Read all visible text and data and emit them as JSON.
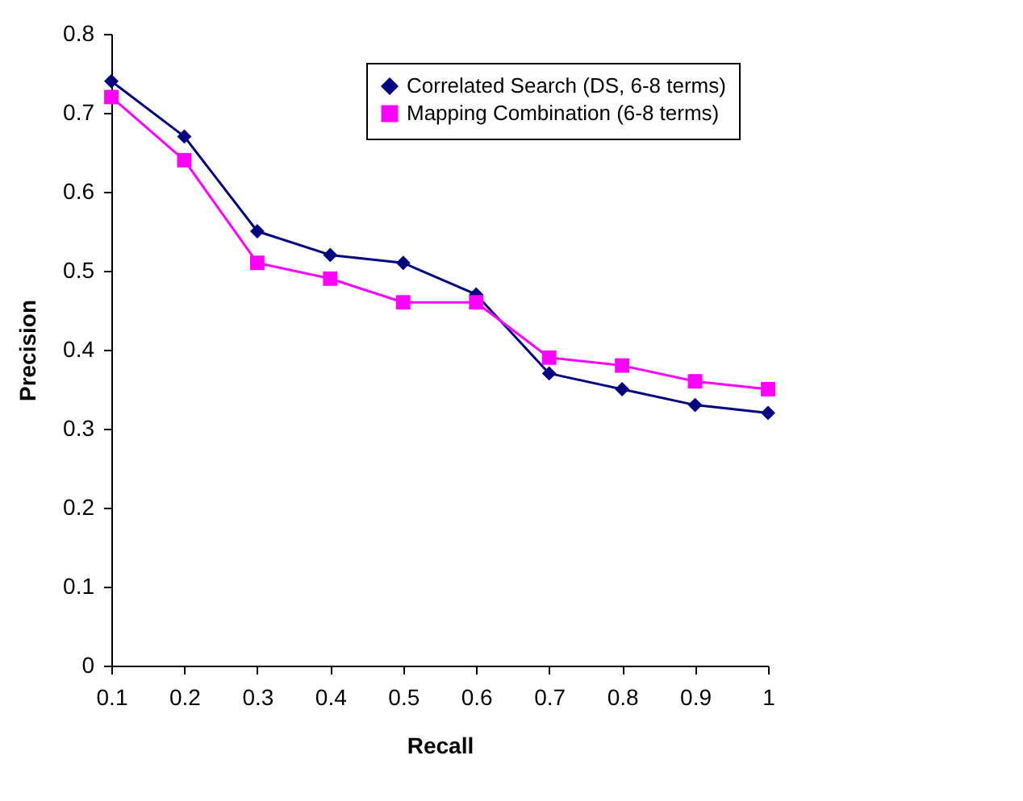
{
  "chart_data": {
    "type": "line",
    "xlabel": "Recall",
    "ylabel": "Precision",
    "categories": [
      "0.1",
      "0.2",
      "0.3",
      "0.4",
      "0.5",
      "0.6",
      "0.7",
      "0.8",
      "0.9",
      "1"
    ],
    "ylim": [
      0,
      0.8
    ],
    "yticks": [
      0,
      0.1,
      0.2,
      0.3,
      0.4,
      0.5,
      0.6,
      0.7,
      0.8
    ],
    "grid": false,
    "legend": "top right",
    "series": [
      {
        "name": "Correlated Search (DS, 6-8 terms)",
        "color": "#000080",
        "marker": "diamond",
        "values": [
          0.74,
          0.67,
          0.55,
          0.52,
          0.51,
          0.47,
          0.37,
          0.35,
          0.33,
          0.32
        ]
      },
      {
        "name": "Mapping Combination (6-8 terms)",
        "color": "#ff00ff",
        "marker": "square",
        "values": [
          0.72,
          0.64,
          0.51,
          0.49,
          0.46,
          0.46,
          0.39,
          0.38,
          0.36,
          0.35
        ]
      }
    ]
  }
}
